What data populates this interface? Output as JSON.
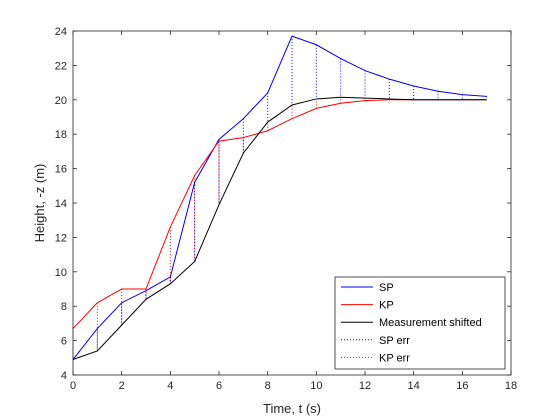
{
  "chart_data": {
    "type": "line",
    "title": "",
    "xlabel": "Time, t (s)",
    "ylabel": "Height, -z (m)",
    "xlim": [
      0,
      18
    ],
    "ylim": [
      4,
      24
    ],
    "xticks": [
      0,
      2,
      4,
      6,
      8,
      10,
      12,
      14,
      16,
      18
    ],
    "yticks": [
      4,
      6,
      8,
      10,
      12,
      14,
      16,
      18,
      20,
      22,
      24
    ],
    "grid": false,
    "legend_position": "bottom-right",
    "x": [
      0,
      1,
      2,
      3,
      4,
      5,
      6,
      7,
      8,
      9,
      10,
      11,
      12,
      13,
      14,
      15,
      16,
      17
    ],
    "series": [
      {
        "name": "SP",
        "color": "#0000ff",
        "style": "solid",
        "values": [
          4.9,
          6.7,
          8.2,
          8.9,
          9.7,
          15.2,
          17.7,
          18.9,
          20.4,
          23.7,
          23.2,
          22.4,
          21.7,
          21.2,
          20.8,
          20.5,
          20.3,
          20.2
        ]
      },
      {
        "name": "KP",
        "color": "#ff0000",
        "style": "solid",
        "values": [
          6.7,
          8.2,
          9.0,
          9.0,
          12.6,
          15.6,
          17.6,
          17.8,
          18.2,
          18.9,
          19.5,
          19.8,
          19.95,
          20.0,
          20.0,
          20.0,
          20.0,
          20.0
        ]
      },
      {
        "name": "Measurement shifted",
        "color": "#000000",
        "style": "solid",
        "values": [
          4.9,
          5.4,
          6.9,
          8.4,
          9.3,
          10.6,
          13.9,
          16.9,
          18.7,
          19.7,
          20.05,
          20.15,
          20.1,
          20.05,
          20.0,
          20.0,
          20.0,
          20.0
        ]
      },
      {
        "name": "SP err",
        "color": "#0000ff",
        "style": "dotted",
        "error_of": "SP"
      },
      {
        "name": "KP err",
        "color": "#ff0000",
        "style": "dotted",
        "error_of": "KP"
      }
    ]
  }
}
